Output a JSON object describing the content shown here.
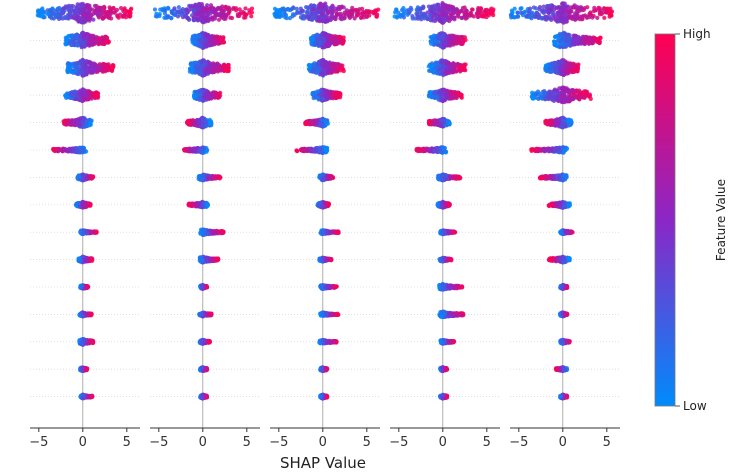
{
  "chart_data": {
    "type": "scatter",
    "subtype": "shap-beeswarm",
    "panels": 5,
    "features_per_panel": 15,
    "xlim": [
      -6,
      6.5
    ],
    "xticks": [
      -5,
      0,
      5
    ],
    "tick_labels": [
      "−5",
      "0",
      "5"
    ],
    "xlabel": "SHAP Value",
    "colorbar": {
      "title": "Feature Value",
      "high_label": "High",
      "low_label": "Low",
      "high_color": "#ff0052",
      "mid_color": "#8b27c6",
      "low_color": "#008bfb"
    },
    "panel_spreads": [
      [
        {
          "neg": -5.3,
          "pos": 5.6,
          "dir": 1,
          "w": 10
        },
        {
          "neg": -2.0,
          "pos": 3.0,
          "dir": 1,
          "w": 8
        },
        {
          "neg": -1.8,
          "pos": 3.6,
          "dir": 1,
          "w": 8
        },
        {
          "neg": -2.0,
          "pos": 1.8,
          "dir": 1,
          "w": 6
        },
        {
          "neg": -2.2,
          "pos": 1.0,
          "dir": -1,
          "w": 5
        },
        {
          "neg": -3.5,
          "pos": 0.4,
          "dir": -1,
          "w": 3
        },
        {
          "neg": -0.6,
          "pos": 1.2,
          "dir": 1,
          "w": 3
        },
        {
          "neg": -0.8,
          "pos": 0.9,
          "dir": 1,
          "w": 3
        },
        {
          "neg": -0.3,
          "pos": 1.6,
          "dir": 1,
          "w": 2
        },
        {
          "neg": -0.5,
          "pos": 1.1,
          "dir": 1,
          "w": 3
        },
        {
          "neg": -0.3,
          "pos": 0.6,
          "dir": 1,
          "w": 2
        },
        {
          "neg": -0.4,
          "pos": 1.0,
          "dir": 1,
          "w": 2
        },
        {
          "neg": -0.4,
          "pos": 1.2,
          "dir": 1,
          "w": 3
        },
        {
          "neg": -0.3,
          "pos": 0.5,
          "dir": 1,
          "w": 2
        },
        {
          "neg": -0.3,
          "pos": 1.1,
          "dir": 1,
          "w": 2
        }
      ],
      [
        {
          "neg": -5.5,
          "pos": 5.6,
          "dir": 1,
          "w": 10
        },
        {
          "neg": -1.2,
          "pos": 2.5,
          "dir": 1,
          "w": 8
        },
        {
          "neg": -1.5,
          "pos": 3.0,
          "dir": 1,
          "w": 8
        },
        {
          "neg": -1.0,
          "pos": 2.0,
          "dir": 1,
          "w": 6
        },
        {
          "neg": -1.8,
          "pos": 1.0,
          "dir": -1,
          "w": 5
        },
        {
          "neg": -2.2,
          "pos": 0.5,
          "dir": -1,
          "w": 3
        },
        {
          "neg": -0.5,
          "pos": 2.0,
          "dir": 1,
          "w": 3
        },
        {
          "neg": -1.6,
          "pos": 0.6,
          "dir": -1,
          "w": 3
        },
        {
          "neg": -0.3,
          "pos": 2.4,
          "dir": 1,
          "w": 3
        },
        {
          "neg": -0.4,
          "pos": 1.8,
          "dir": 1,
          "w": 3
        },
        {
          "neg": -0.3,
          "pos": 0.5,
          "dir": 1,
          "w": 2
        },
        {
          "neg": -0.4,
          "pos": 1.0,
          "dir": 1,
          "w": 2
        },
        {
          "neg": -0.4,
          "pos": 0.8,
          "dir": 1,
          "w": 2
        },
        {
          "neg": -0.3,
          "pos": 0.5,
          "dir": 1,
          "w": 2
        },
        {
          "neg": -0.3,
          "pos": 0.5,
          "dir": 1,
          "w": 2
        }
      ],
      [
        {
          "neg": -5.5,
          "pos": 6.3,
          "dir": 1,
          "w": 10
        },
        {
          "neg": -1.4,
          "pos": 2.4,
          "dir": 1,
          "w": 8
        },
        {
          "neg": -1.6,
          "pos": 2.4,
          "dir": 1,
          "w": 8
        },
        {
          "neg": -1.2,
          "pos": 2.0,
          "dir": 1,
          "w": 6
        },
        {
          "neg": -2.0,
          "pos": 0.6,
          "dir": -1,
          "w": 4
        },
        {
          "neg": -3.0,
          "pos": 0.5,
          "dir": -1,
          "w": 3
        },
        {
          "neg": -0.4,
          "pos": 1.2,
          "dir": 1,
          "w": 3
        },
        {
          "neg": -0.6,
          "pos": 0.7,
          "dir": 1,
          "w": 3
        },
        {
          "neg": -0.3,
          "pos": 1.8,
          "dir": 1,
          "w": 2
        },
        {
          "neg": -0.4,
          "pos": 1.0,
          "dir": 1,
          "w": 2
        },
        {
          "neg": -0.3,
          "pos": 1.6,
          "dir": 1,
          "w": 2
        },
        {
          "neg": -0.3,
          "pos": 1.8,
          "dir": 1,
          "w": 2
        },
        {
          "neg": -0.4,
          "pos": 1.6,
          "dir": 1,
          "w": 2
        },
        {
          "neg": -0.3,
          "pos": 0.5,
          "dir": 1,
          "w": 2
        },
        {
          "neg": -0.3,
          "pos": 0.5,
          "dir": 1,
          "w": 2
        }
      ],
      [
        {
          "neg": -5.5,
          "pos": 5.8,
          "dir": 1,
          "w": 10
        },
        {
          "neg": -1.4,
          "pos": 2.6,
          "dir": 1,
          "w": 8
        },
        {
          "neg": -1.6,
          "pos": 2.6,
          "dir": 1,
          "w": 8
        },
        {
          "neg": -1.6,
          "pos": 2.2,
          "dir": 1,
          "w": 6
        },
        {
          "neg": -1.6,
          "pos": 0.8,
          "dir": -1,
          "w": 4
        },
        {
          "neg": -3.0,
          "pos": 0.4,
          "dir": -1,
          "w": 3
        },
        {
          "neg": -0.6,
          "pos": 2.0,
          "dir": 1,
          "w": 3
        },
        {
          "neg": -0.6,
          "pos": 0.8,
          "dir": 1,
          "w": 3
        },
        {
          "neg": -0.3,
          "pos": 1.4,
          "dir": 1,
          "w": 2
        },
        {
          "neg": -0.4,
          "pos": 1.0,
          "dir": 1,
          "w": 2
        },
        {
          "neg": -0.4,
          "pos": 2.2,
          "dir": 1,
          "w": 3
        },
        {
          "neg": -0.4,
          "pos": 2.4,
          "dir": 1,
          "w": 3
        },
        {
          "neg": -0.3,
          "pos": 1.3,
          "dir": 1,
          "w": 2
        },
        {
          "neg": -0.3,
          "pos": 0.5,
          "dir": 1,
          "w": 2
        },
        {
          "neg": -0.3,
          "pos": 0.5,
          "dir": 1,
          "w": 2
        }
      ],
      [
        {
          "neg": -6.0,
          "pos": 5.6,
          "dir": 1,
          "w": 10
        },
        {
          "neg": -1.0,
          "pos": 4.3,
          "dir": 1,
          "w": 8
        },
        {
          "neg": -2.0,
          "pos": 1.8,
          "dir": 1,
          "w": 8
        },
        {
          "neg": -3.6,
          "pos": 3.2,
          "dir": 1,
          "w": 8
        },
        {
          "neg": -2.0,
          "pos": 1.0,
          "dir": -1,
          "w": 5
        },
        {
          "neg": -3.6,
          "pos": 0.5,
          "dir": -1,
          "w": 3
        },
        {
          "neg": -2.6,
          "pos": 0.5,
          "dir": -1,
          "w": 3
        },
        {
          "neg": -1.6,
          "pos": 0.8,
          "dir": -1,
          "w": 3
        },
        {
          "neg": -0.3,
          "pos": 1.2,
          "dir": 1,
          "w": 2
        },
        {
          "neg": -1.6,
          "pos": 0.8,
          "dir": -1,
          "w": 3
        },
        {
          "neg": -0.3,
          "pos": 0.5,
          "dir": 1,
          "w": 2
        },
        {
          "neg": -0.3,
          "pos": 0.5,
          "dir": 1,
          "w": 2
        },
        {
          "neg": -0.3,
          "pos": 0.8,
          "dir": 1,
          "w": 2
        },
        {
          "neg": -0.8,
          "pos": 0.5,
          "dir": -1,
          "w": 2
        },
        {
          "neg": -0.3,
          "pos": 0.5,
          "dir": 1,
          "w": 2
        }
      ]
    ]
  }
}
